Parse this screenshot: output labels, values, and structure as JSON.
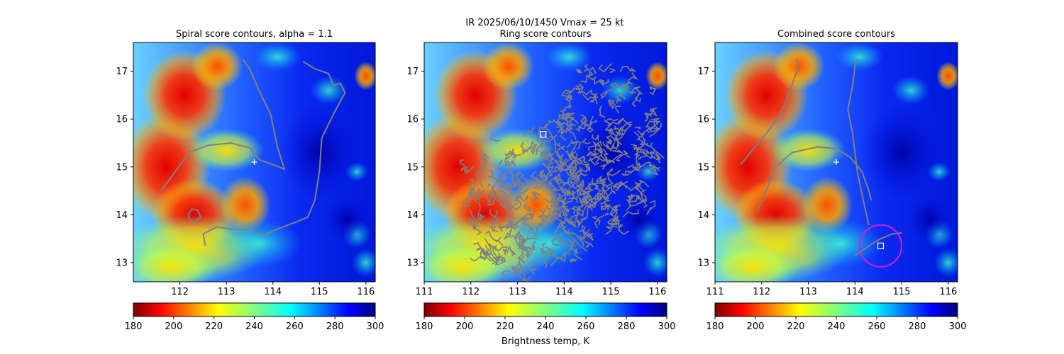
{
  "figure": {
    "suptitle_line1": "IR  2025/06/10/1450    Vmax = 25 kt",
    "colorbar_label": "Brightness temp, K"
  },
  "chart_data": [
    {
      "type": "heatmap",
      "title": "Spiral score contours, alpha =  1.1",
      "xlim": [
        111,
        116.2
      ],
      "ylim": [
        12.6,
        17.6
      ],
      "xticks": [
        112,
        113,
        114,
        115,
        116
      ],
      "yticks": [
        13,
        14,
        15,
        16,
        17
      ],
      "ytick_labels_shown": true,
      "colorbar": {
        "colormap": "jet_r",
        "min": 180,
        "max": 300,
        "ticks": [
          180,
          200,
          220,
          240,
          260,
          280,
          300
        ]
      },
      "center_marker": {
        "type": "plus",
        "x": 113.6,
        "y": 15.1,
        "color": "#ffffff"
      },
      "contours": [
        {
          "name": "spiral-contour-1",
          "color": "#808080",
          "points": [
            [
              111.6,
              14.5
            ],
            [
              111.9,
              14.9
            ],
            [
              112.2,
              15.3
            ],
            [
              112.6,
              15.45
            ],
            [
              113.1,
              15.5
            ],
            [
              113.5,
              15.4
            ],
            [
              113.7,
              15.15
            ],
            [
              114.0,
              15.05
            ],
            [
              114.25,
              14.95
            ],
            [
              114.1,
              15.4
            ],
            [
              113.95,
              16.1
            ],
            [
              113.7,
              16.6
            ],
            [
              113.5,
              17.05
            ],
            [
              113.35,
              17.25
            ]
          ]
        },
        {
          "name": "spiral-contour-2",
          "color": "#808080",
          "points": [
            [
              112.55,
              13.35
            ],
            [
              112.5,
              13.6
            ],
            [
              112.8,
              13.75
            ],
            [
              113.1,
              13.7
            ],
            [
              113.5,
              13.68
            ],
            [
              113.8,
              13.58
            ],
            [
              114.1,
              13.7
            ],
            [
              114.5,
              13.85
            ],
            [
              114.75,
              13.95
            ],
            [
              114.9,
              14.3
            ],
            [
              115.0,
              14.9
            ],
            [
              115.05,
              15.6
            ],
            [
              115.3,
              16.1
            ],
            [
              115.55,
              16.55
            ],
            [
              115.45,
              16.75
            ],
            [
              115.3,
              16.7
            ],
            [
              115.2,
              16.95
            ],
            [
              114.9,
              17.05
            ],
            [
              114.65,
              17.2
            ]
          ]
        },
        {
          "name": "spiral-contour-3",
          "color": "#808080",
          "points": [
            [
              112.22,
              13.9
            ],
            [
              112.3,
              13.85
            ],
            [
              112.45,
              13.95
            ],
            [
              112.38,
              14.1
            ],
            [
              112.25,
              14.12
            ],
            [
              112.18,
              14.0
            ],
            [
              112.22,
              13.9
            ]
          ]
        }
      ]
    },
    {
      "type": "heatmap",
      "title": "Ring score contours",
      "xlim": [
        111,
        116.2
      ],
      "ylim": [
        12.6,
        17.6
      ],
      "xticks": [
        111,
        112,
        113,
        114,
        115,
        116
      ],
      "yticks": [
        13,
        14,
        15,
        16,
        17
      ],
      "ytick_labels_shown": true,
      "colorbar": {
        "colormap": "jet_r",
        "min": 180,
        "max": 300,
        "ticks": [
          180,
          200,
          220,
          240,
          260,
          280,
          300
        ]
      },
      "center_marker": {
        "type": "square",
        "x": 113.55,
        "y": 15.68,
        "color": "#ffffff"
      },
      "ring_region": {
        "color": "#808080",
        "clusters": [
          {
            "cx": 113.2,
            "cy": 14.2,
            "rx": 1.45,
            "ry": 1.5
          },
          {
            "cx": 114.9,
            "cy": 15.4,
            "rx": 1.2,
            "ry": 1.85
          }
        ]
      }
    },
    {
      "type": "heatmap",
      "title": "Combined score contours",
      "xlim": [
        111,
        116.2
      ],
      "ylim": [
        12.6,
        17.6
      ],
      "xticks": [
        111,
        112,
        113,
        114,
        115,
        116
      ],
      "yticks": [
        13,
        14,
        15,
        16,
        17
      ],
      "ytick_labels_shown": true,
      "colorbar": {
        "colormap": "jet_r",
        "min": 180,
        "max": 300,
        "ticks": [
          180,
          200,
          220,
          240,
          260,
          280,
          300
        ]
      },
      "center_marker": {
        "type": "plus",
        "x": 113.6,
        "y": 15.1,
        "color": "#ffffff"
      },
      "square_marker": {
        "x": 114.55,
        "y": 13.35,
        "color": "#ffffff"
      },
      "circle": {
        "x": 114.55,
        "y": 13.35,
        "r_x_units": 0.45,
        "color": "#cc22cc"
      },
      "contours": [
        {
          "name": "combined-contour-1",
          "color": "#808080",
          "points": [
            [
              111.9,
              14.05
            ],
            [
              112.1,
              14.5
            ],
            [
              112.3,
              15.0
            ],
            [
              112.65,
              15.3
            ],
            [
              113.2,
              15.42
            ],
            [
              113.6,
              15.38
            ],
            [
              113.9,
              15.2
            ],
            [
              114.15,
              14.9
            ],
            [
              114.3,
              14.5
            ],
            [
              114.35,
              14.3
            ]
          ]
        },
        {
          "name": "combined-contour-2",
          "color": "#808080",
          "points": [
            [
              111.55,
              15.05
            ],
            [
              111.8,
              15.35
            ],
            [
              112.1,
              15.7
            ],
            [
              112.4,
              16.1
            ],
            [
              112.55,
              16.45
            ],
            [
              112.7,
              16.85
            ],
            [
              112.8,
              17.1
            ],
            [
              112.75,
              17.25
            ]
          ]
        },
        {
          "name": "combined-contour-3",
          "color": "#808080",
          "points": [
            [
              114.3,
              13.78
            ],
            [
              114.2,
              14.2
            ],
            [
              114.05,
              14.9
            ],
            [
              113.95,
              15.7
            ],
            [
              113.85,
              16.2
            ],
            [
              113.95,
              16.7
            ],
            [
              114.0,
              17.1
            ],
            [
              114.05,
              17.25
            ]
          ]
        },
        {
          "name": "combined-contour-4",
          "color": "#808080",
          "points": [
            [
              114.0,
              13.15
            ],
            [
              114.3,
              13.35
            ],
            [
              114.55,
              13.5
            ],
            [
              114.8,
              13.6
            ],
            [
              115.0,
              13.62
            ]
          ]
        }
      ]
    }
  ]
}
